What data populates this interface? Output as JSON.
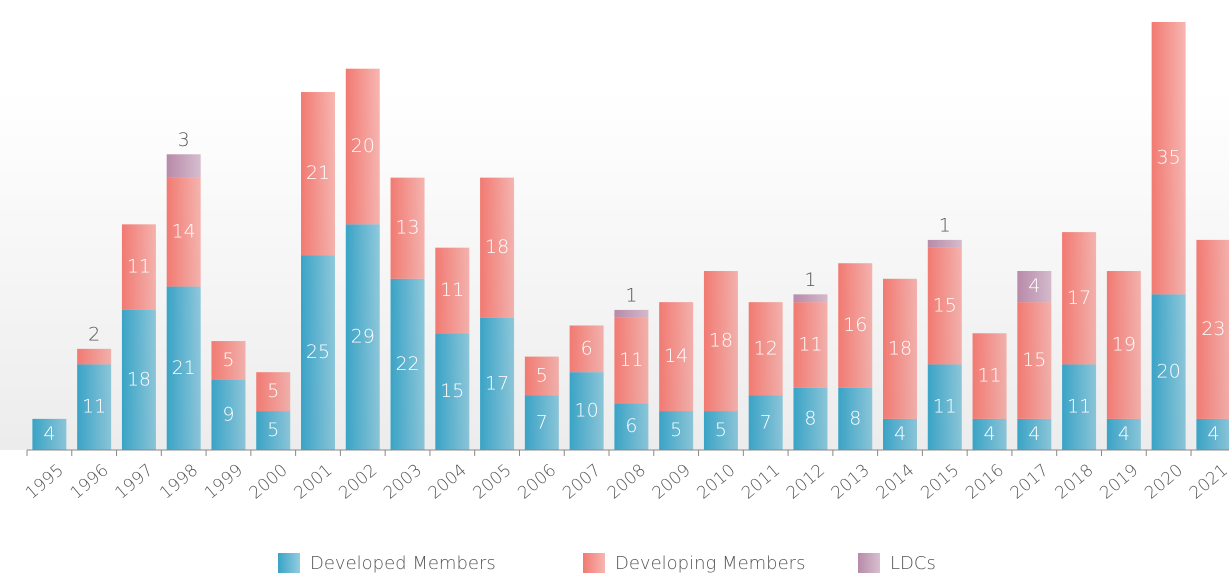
{
  "chart_data": {
    "type": "stacked_bar",
    "categories": [
      "1995",
      "1996",
      "1997",
      "1998",
      "1999",
      "2000",
      "2001",
      "2002",
      "2003",
      "2004",
      "2005",
      "2006",
      "2007",
      "2008",
      "2009",
      "2010",
      "2011",
      "2012",
      "2013",
      "2014",
      "2015",
      "2016",
      "2017",
      "2018",
      "2019",
      "2020",
      "2021"
    ],
    "series": [
      {
        "name": "Developed Members",
        "color": "#3aa3c6",
        "values": [
          4,
          11,
          18,
          21,
          9,
          5,
          25,
          29,
          22,
          15,
          17,
          7,
          10,
          6,
          5,
          5,
          7,
          8,
          8,
          4,
          11,
          4,
          4,
          11,
          4,
          20,
          4
        ]
      },
      {
        "name": "Developing Members",
        "color": "#f17a72",
        "values": [
          null,
          2,
          11,
          14,
          5,
          5,
          21,
          20,
          13,
          11,
          18,
          5,
          6,
          11,
          14,
          18,
          12,
          11,
          16,
          18,
          15,
          11,
          15,
          17,
          19,
          35,
          23
        ]
      },
      {
        "name": "LDCs",
        "color": "#b88aa9",
        "values": [
          null,
          null,
          null,
          3,
          null,
          null,
          null,
          null,
          null,
          null,
          null,
          null,
          null,
          1,
          null,
          null,
          null,
          1,
          null,
          null,
          1,
          null,
          4,
          null,
          null,
          null,
          null
        ]
      }
    ],
    "ylim": [
      0,
      55
    ]
  }
}
